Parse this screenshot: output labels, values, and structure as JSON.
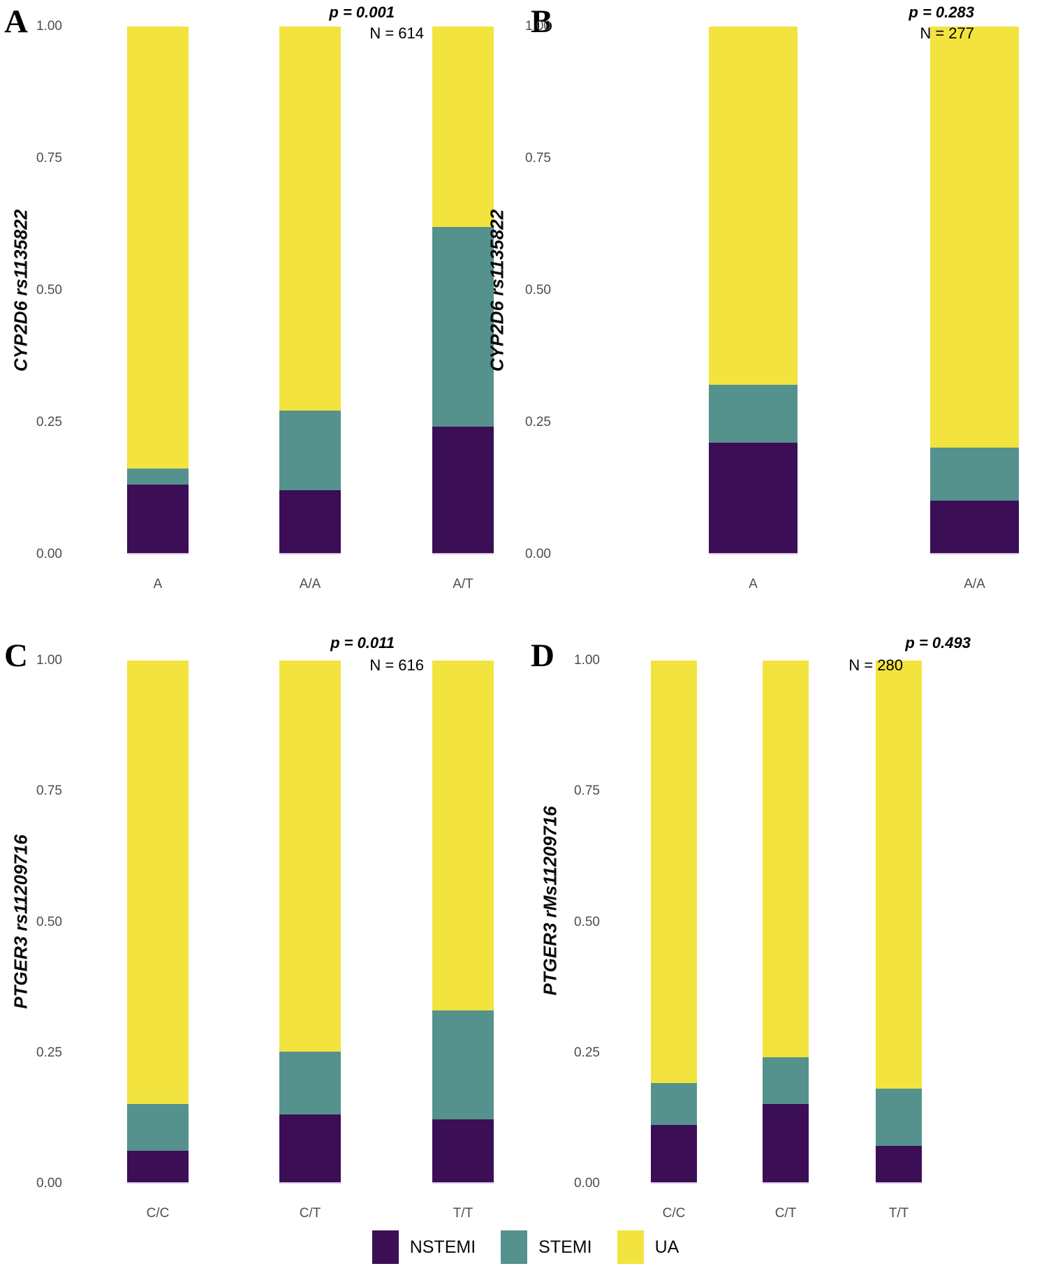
{
  "axis": {
    "ticks": [
      "1.00",
      "0.75",
      "0.50",
      "0.25",
      "0.00"
    ]
  },
  "legend": {
    "items": [
      {
        "label": "NSTEMI",
        "color": "#3c0e56"
      },
      {
        "label": "STEMI",
        "color": "#55928d"
      },
      {
        "label": "UA",
        "color": "#f3e33e"
      }
    ]
  },
  "chart_data": [
    {
      "type": "bar",
      "stacked": true,
      "panel_letter": "A",
      "ylabel": "CYP2D6 rs1135822",
      "p_label": "p = 0.001",
      "n_label": "N = 614",
      "categories": [
        "A",
        "A/A",
        "A/T"
      ],
      "series": [
        {
          "name": "NSTEMI",
          "values": [
            0.13,
            0.12,
            0.24
          ]
        },
        {
          "name": "STEMI",
          "values": [
            0.03,
            0.15,
            0.38
          ]
        },
        {
          "name": "UA",
          "values": [
            0.84,
            0.73,
            0.38
          ]
        }
      ],
      "ylim": [
        0,
        1
      ],
      "yticks": [
        0,
        0.25,
        0.5,
        0.75,
        1.0
      ],
      "grid": false,
      "legend_position": "bottom"
    },
    {
      "type": "bar",
      "stacked": true,
      "panel_letter": "B",
      "ylabel": "CYP2D6 rs1135822",
      "p_label": "p = 0.283",
      "n_label": "N = 277",
      "categories": [
        "A",
        "A/A"
      ],
      "series": [
        {
          "name": "NSTEMI",
          "values": [
            0.21,
            0.1
          ]
        },
        {
          "name": "STEMI",
          "values": [
            0.11,
            0.1
          ]
        },
        {
          "name": "UA",
          "values": [
            0.68,
            0.8
          ]
        }
      ],
      "ylim": [
        0,
        1
      ],
      "yticks": [
        0,
        0.25,
        0.5,
        0.75,
        1.0
      ],
      "grid": false,
      "legend_position": "bottom"
    },
    {
      "type": "bar",
      "stacked": true,
      "panel_letter": "C",
      "ylabel": "PTGER3 rs11209716",
      "p_label": "p = 0.011",
      "n_label": "N = 616",
      "categories": [
        "C/C",
        "C/T",
        "T/T"
      ],
      "series": [
        {
          "name": "NSTEMI",
          "values": [
            0.06,
            0.13,
            0.12
          ]
        },
        {
          "name": "STEMI",
          "values": [
            0.09,
            0.12,
            0.21
          ]
        },
        {
          "name": "UA",
          "values": [
            0.85,
            0.75,
            0.67
          ]
        }
      ],
      "ylim": [
        0,
        1
      ],
      "yticks": [
        0,
        0.25,
        0.5,
        0.75,
        1.0
      ],
      "grid": false,
      "legend_position": "bottom"
    },
    {
      "type": "bar",
      "stacked": true,
      "panel_letter": "D",
      "ylabel": "PTGER3 rMs11209716",
      "p_label": "p = 0.493",
      "n_label": "N = 280",
      "categories": [
        "C/C",
        "C/T",
        "T/T"
      ],
      "series": [
        {
          "name": "NSTEMI",
          "values": [
            0.11,
            0.15,
            0.07
          ]
        },
        {
          "name": "STEMI",
          "values": [
            0.08,
            0.09,
            0.11
          ]
        },
        {
          "name": "UA",
          "values": [
            0.81,
            0.76,
            0.82
          ]
        }
      ],
      "ylim": [
        0,
        1
      ],
      "yticks": [
        0,
        0.25,
        0.5,
        0.75,
        1.0
      ],
      "grid": false,
      "legend_position": "bottom"
    }
  ]
}
